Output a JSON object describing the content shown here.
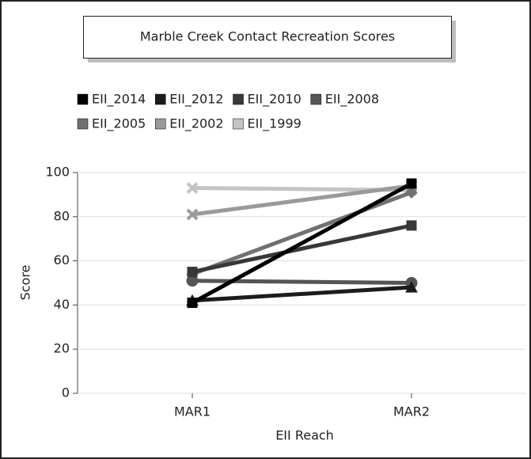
{
  "chart_data": {
    "type": "line",
    "title": "Marble Creek Contact Recreation Scores",
    "x_label": "EII Reach",
    "y_label": "Score",
    "categories": [
      "MAR1",
      "MAR2"
    ],
    "ylim": [
      0,
      100
    ],
    "yticks": [
      0,
      20,
      40,
      60,
      80,
      100
    ],
    "series": [
      {
        "name": "EII_2014",
        "color": "#000000",
        "marker": "square",
        "values": [
          41,
          95
        ]
      },
      {
        "name": "EII_2012",
        "color": "#1c1c1c",
        "marker": "triangle",
        "values": [
          42,
          48
        ]
      },
      {
        "name": "EII_2010",
        "color": "#383838",
        "marker": "square",
        "values": [
          55,
          76
        ]
      },
      {
        "name": "EII_2008",
        "color": "#555555",
        "marker": "circle",
        "values": [
          51,
          50
        ]
      },
      {
        "name": "EII_2005",
        "color": "#717171",
        "marker": "diamond",
        "values": [
          54,
          91
        ]
      },
      {
        "name": "EII_2002",
        "color": "#9a9a9a",
        "marker": "x",
        "values": [
          81,
          94
        ]
      },
      {
        "name": "EII_1999",
        "color": "#c4c4c4",
        "marker": "x",
        "values": [
          93,
          92
        ]
      }
    ]
  }
}
